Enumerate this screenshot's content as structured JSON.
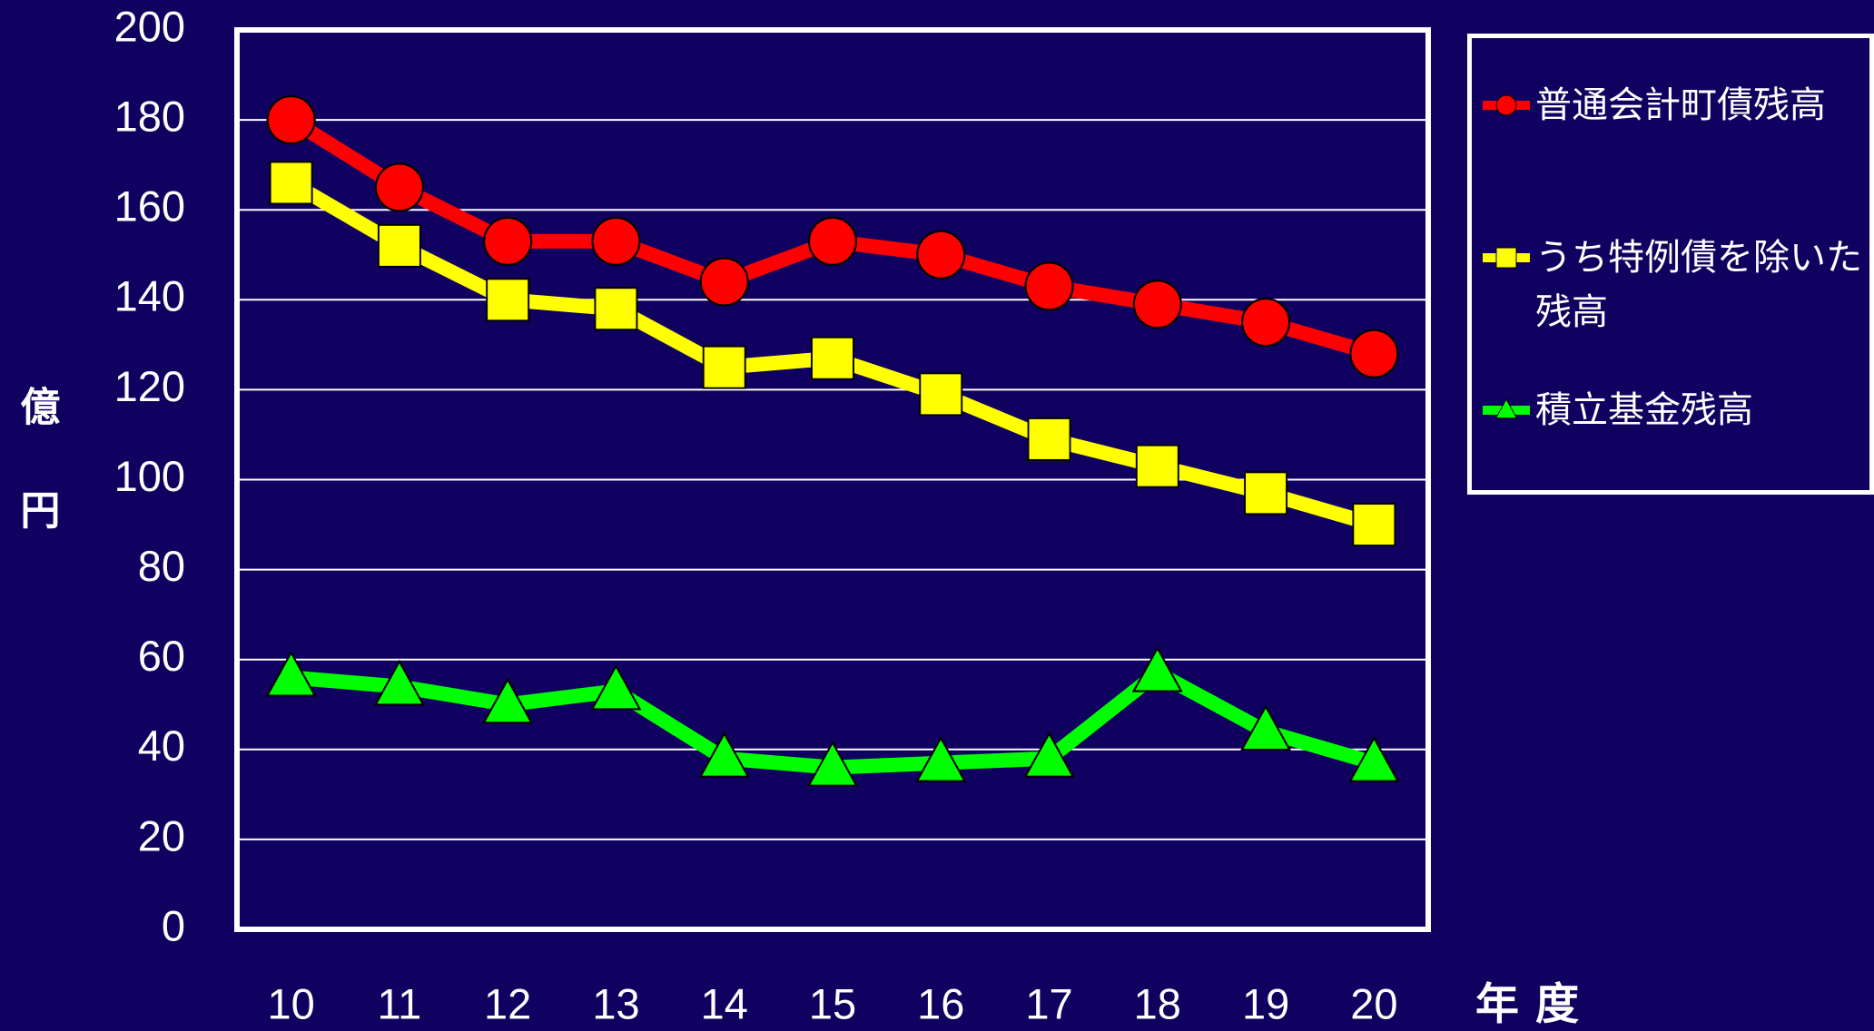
{
  "chart_data": {
    "type": "line",
    "categories": [
      "10",
      "11",
      "12",
      "13",
      "14",
      "15",
      "16",
      "17",
      "18",
      "19",
      "20"
    ],
    "series": [
      {
        "name": "普通会計町債残高",
        "color": "#ff0000",
        "marker": "circle",
        "values": [
          180,
          165,
          153,
          153,
          144,
          153,
          150,
          143,
          139,
          135,
          128
        ]
      },
      {
        "name": "うち特例債を除いた残高",
        "color": "#ffff00",
        "marker": "square",
        "values": [
          166,
          152,
          140,
          138,
          125,
          127,
          119,
          109,
          103,
          97,
          90
        ]
      },
      {
        "name": "積立基金残高",
        "color": "#00ff00",
        "marker": "triangle",
        "values": [
          56,
          54,
          50,
          53,
          38,
          36,
          37,
          38,
          57,
          44,
          37
        ]
      }
    ],
    "y_axis_label": "億円",
    "x_axis_label": "年度",
    "ylim": [
      0,
      200
    ],
    "yticks": [
      0,
      20,
      40,
      60,
      80,
      100,
      120,
      140,
      160,
      180,
      200
    ],
    "grid": true,
    "legend": "right"
  }
}
